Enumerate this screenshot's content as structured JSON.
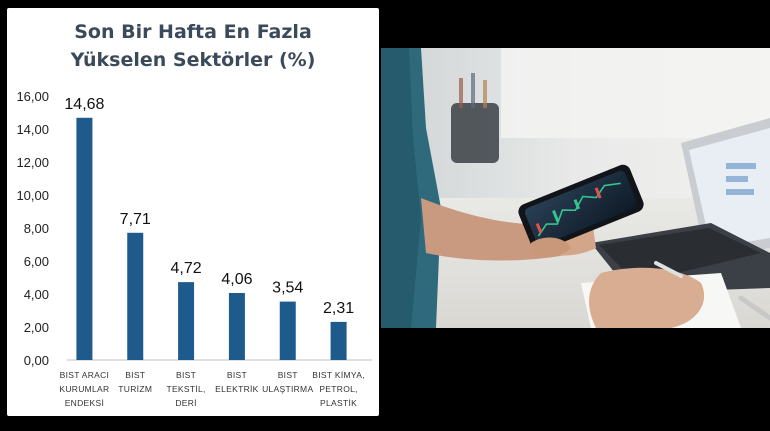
{
  "chart_data": {
    "type": "bar",
    "title_lines": [
      "Son Bir Hafta En Fazla",
      "Yükselen Sektörler (%)"
    ],
    "categories": [
      [
        "BIST ARACI",
        "KURUMLAR",
        "ENDEKSİ"
      ],
      [
        "BIST",
        "TURİZM"
      ],
      [
        "BIST",
        "TEKSTİL,",
        "DERİ"
      ],
      [
        "BIST",
        "ELEKTRİK"
      ],
      [
        "BIST",
        "ULAŞTIRMA"
      ],
      [
        "BIST KİMYA,",
        "PETROL,",
        "PLASTİK"
      ]
    ],
    "values": [
      14.68,
      7.71,
      4.72,
      4.06,
      3.54,
      2.31
    ],
    "value_labels": [
      "14,68",
      "7,71",
      "4,72",
      "4,06",
      "3,54",
      "2,31"
    ],
    "yticks": [
      "0,00",
      "2,00",
      "4,00",
      "6,00",
      "8,00",
      "10,00",
      "12,00",
      "14,00",
      "16,00"
    ],
    "ylim": [
      0,
      16
    ],
    "grid": false,
    "bar_color": "#1f5a8c"
  },
  "photo": {
    "description_icon": "hand-holding-phone-with-laptop-photo"
  }
}
